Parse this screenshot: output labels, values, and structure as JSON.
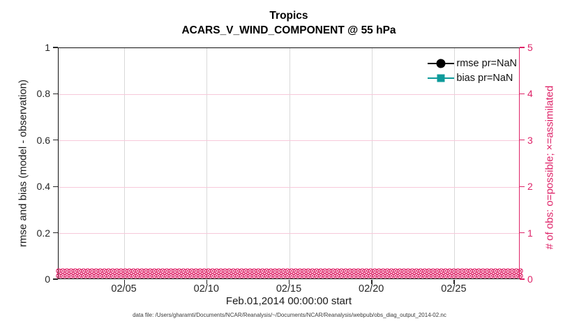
{
  "figure": {
    "title_line1": "Tropics",
    "title_line2": "ACARS_V_WIND_COMPONENT @ 55 hPa",
    "xlabel": "Feb.01,2014 00:00:00 start",
    "caption": "data file: /Users/gharamti/Documents/NCAR/Reanalysis/~/Documents/NCAR/Reanalysis/webpub/obs_diag_output_2014-02.nc"
  },
  "left_axis": {
    "label": "rmse and bias (model - observation)",
    "ticks": [
      "0",
      "0.2",
      "0.4",
      "0.6",
      "0.8",
      "1"
    ],
    "range": [
      0,
      1
    ],
    "color": "#262626"
  },
  "right_axis": {
    "label": "# of obs: o=possible; ×=assimilated",
    "ticks": [
      "0",
      "1",
      "2",
      "3",
      "4",
      "5"
    ],
    "range": [
      0,
      5
    ],
    "color": "#de2368"
  },
  "x_axis": {
    "tick_labels": [
      "02/05",
      "02/10",
      "02/15",
      "02/20",
      "02/25"
    ],
    "tick_day_offsets": [
      4,
      9,
      14,
      19,
      24
    ],
    "days_total": 28
  },
  "legend": {
    "items": [
      {
        "label": "rmse pr=NaN",
        "marker": "filled-circle-icon",
        "color": "#000000"
      },
      {
        "label": "bias pr=NaN",
        "marker": "filled-square-icon",
        "color": "#0f9b9b"
      }
    ]
  },
  "obs_markers": {
    "glyphs": "o and ×",
    "color": "#de2368",
    "value": 0,
    "time_steps": 112
  },
  "grid": {
    "vertical_color": "#d9d9d9",
    "horizontal_color": "#f7c9da"
  },
  "chart_data": {
    "type": "line",
    "title": "Tropics",
    "subtitle": "ACARS_V_WIND_COMPONENT @ 55 hPa",
    "xlabel": "Feb.01,2014 00:00:00 start",
    "ylabel_left": "rmse and bias (model - observation)",
    "ylabel_right": "# of obs: o=possible; ×=assimilated",
    "xlim_dates": [
      "2014-02-01 00:00:00",
      "2014-03-01 00:00:00"
    ],
    "x_tick_labels": [
      "02/05",
      "02/10",
      "02/15",
      "02/20",
      "02/25"
    ],
    "ylim_left": [
      0,
      1
    ],
    "ylim_right": [
      0,
      5
    ],
    "grid": true,
    "legend_position": "top-right-inside",
    "series": [
      {
        "name": "rmse pr=NaN",
        "axis": "left",
        "values": "NaN for all times (no curve drawn)"
      },
      {
        "name": "bias pr=NaN",
        "axis": "left",
        "values": "NaN for all times (no curve drawn)"
      },
      {
        "name": "possible obs (o)",
        "axis": "right",
        "constant_value": 0,
        "time_steps": 112
      },
      {
        "name": "assimilated obs (×)",
        "axis": "right",
        "constant_value": 0,
        "time_steps": 112
      }
    ]
  }
}
